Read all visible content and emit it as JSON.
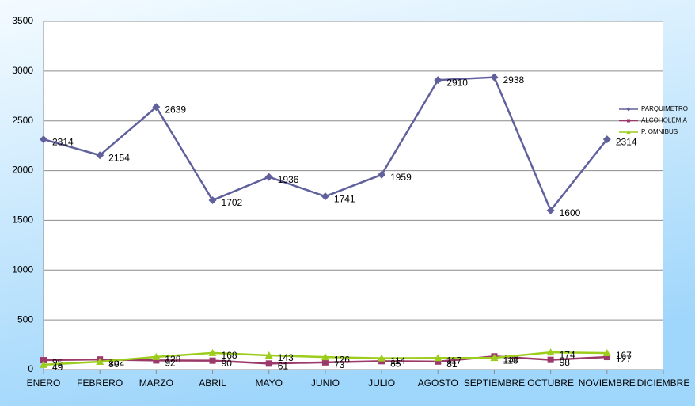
{
  "chart_data": {
    "type": "line",
    "categories": [
      "ENERO",
      "FEBRERO",
      "MARZO",
      "ABRIL",
      "MAYO",
      "JUNIO",
      "JULIO",
      "AGOSTO",
      "SEPTIEMBRE",
      "OCTUBRE",
      "NOVIEMBRE",
      "DICIEMBRE"
    ],
    "series": [
      {
        "name": "PARQUIMETRO",
        "color": "#60609c",
        "marker": "diamond",
        "values": [
          2314,
          2154,
          2639,
          1702,
          1936,
          1741,
          1959,
          2910,
          2938,
          1600,
          2314,
          null
        ]
      },
      {
        "name": "ALCOHOLEMIA",
        "color": "#9b3a6a",
        "marker": "square",
        "values": [
          95,
          102,
          92,
          90,
          61,
          73,
          85,
          81,
          133,
          98,
          127,
          null
        ]
      },
      {
        "name": "P. OMNIBUS",
        "color": "#9ccc1c",
        "marker": "triangle",
        "values": [
          49,
          80,
          128,
          168,
          143,
          126,
          114,
          117,
          118,
          174,
          167,
          null
        ]
      }
    ],
    "ylim": [
      0,
      3500
    ],
    "yticks": [
      0,
      500,
      1000,
      1500,
      2000,
      2500,
      3000,
      3500
    ],
    "grid": true,
    "legend": "right"
  }
}
